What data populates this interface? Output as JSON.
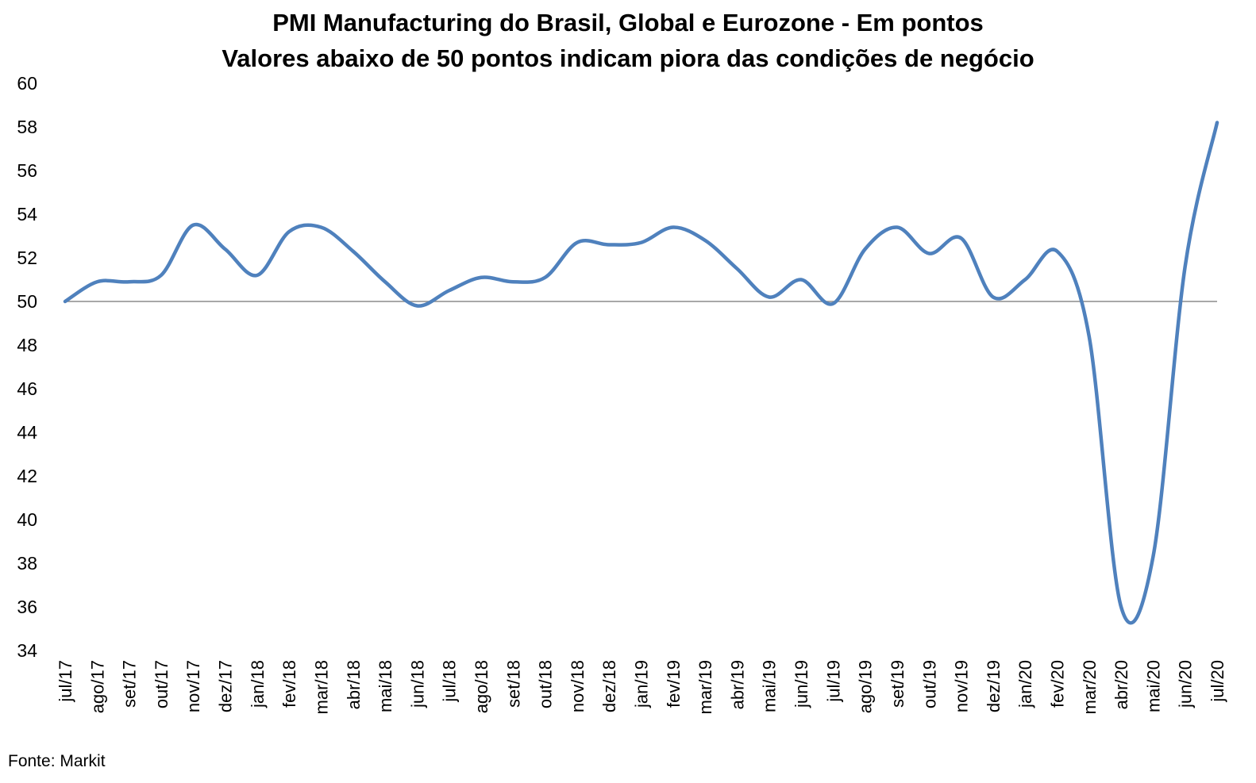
{
  "title_line1": "PMI Manufacturing do Brasil, Global e Eurozone - Em pontos",
  "title_line2": "Valores abaixo de 50 pontos indicam piora das condições de negócio",
  "source": "Fonte: Markit",
  "colors": {
    "line": "#4f81bd",
    "reference": "#8c8c8c"
  },
  "chart_data": {
    "type": "line",
    "categories": [
      "jul/17",
      "ago/17",
      "set/17",
      "out/17",
      "nov/17",
      "dez/17",
      "jan/18",
      "fev/18",
      "mar/18",
      "abr/18",
      "mai/18",
      "jun/18",
      "jul/18",
      "ago/18",
      "set/18",
      "out/18",
      "nov/18",
      "dez/18",
      "jan/19",
      "fev/19",
      "mar/19",
      "abr/19",
      "mai/19",
      "jun/19",
      "jul/19",
      "ago/19",
      "set/19",
      "out/19",
      "nov/19",
      "dez/19",
      "jan/20",
      "fev/20",
      "mar/20",
      "abr/20",
      "mai/20",
      "jun/20",
      "jul/20"
    ],
    "series": [
      {
        "values": [
          50.0,
          50.9,
          50.9,
          51.2,
          53.5,
          52.4,
          51.2,
          53.2,
          53.4,
          52.3,
          50.9,
          49.8,
          50.5,
          51.1,
          50.9,
          51.1,
          52.7,
          52.6,
          52.7,
          53.4,
          52.8,
          51.5,
          50.2,
          51.0,
          49.9,
          52.4,
          53.4,
          52.2,
          52.9,
          50.2,
          51.0,
          52.3,
          48.4,
          36.0,
          38.3,
          51.6,
          58.2
        ]
      }
    ],
    "reference_line": 50,
    "ylim": [
      34,
      60
    ],
    "yticks": [
      34,
      36,
      38,
      40,
      42,
      44,
      46,
      48,
      50,
      52,
      54,
      56,
      58,
      60
    ],
    "grid": false,
    "legend": "none"
  }
}
